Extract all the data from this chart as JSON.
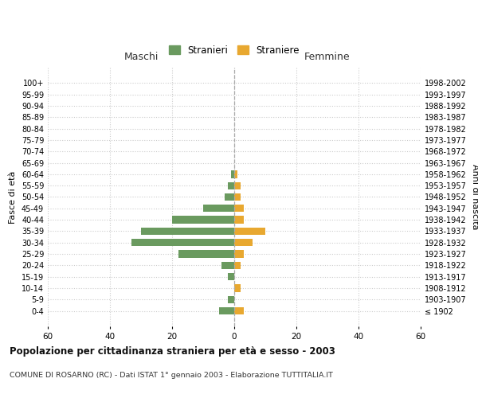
{
  "age_groups": [
    "100+",
    "95-99",
    "90-94",
    "85-89",
    "80-84",
    "75-79",
    "70-74",
    "65-69",
    "60-64",
    "55-59",
    "50-54",
    "45-49",
    "40-44",
    "35-39",
    "30-34",
    "25-29",
    "20-24",
    "15-19",
    "10-14",
    "5-9",
    "0-4"
  ],
  "birth_years": [
    "≤ 1902",
    "1903-1907",
    "1908-1912",
    "1913-1917",
    "1918-1922",
    "1923-1927",
    "1928-1932",
    "1933-1937",
    "1938-1942",
    "1943-1947",
    "1948-1952",
    "1953-1957",
    "1958-1962",
    "1963-1967",
    "1968-1972",
    "1973-1977",
    "1978-1982",
    "1983-1987",
    "1988-1992",
    "1993-1997",
    "1998-2002"
  ],
  "males": [
    0,
    0,
    0,
    0,
    0,
    0,
    0,
    0,
    1,
    2,
    3,
    10,
    20,
    30,
    33,
    18,
    4,
    2,
    0,
    2,
    5
  ],
  "females": [
    0,
    0,
    0,
    0,
    0,
    0,
    0,
    0,
    1,
    2,
    2,
    3,
    3,
    10,
    6,
    3,
    2,
    0,
    2,
    0,
    3
  ],
  "male_color": "#6a9a5f",
  "female_color": "#e8a830",
  "background_color": "#ffffff",
  "grid_color": "#cccccc",
  "xlim": 60,
  "title": "Popolazione per cittadinanza straniera per età e sesso - 2003",
  "subtitle": "COMUNE DI ROSARNO (RC) - Dati ISTAT 1° gennaio 2003 - Elaborazione TUTTITALIA.IT",
  "ylabel_left": "Fasce di età",
  "ylabel_right": "Anni di nascita",
  "legend_male": "Stranieri",
  "legend_female": "Straniere",
  "header_male": "Maschi",
  "header_female": "Femmine"
}
